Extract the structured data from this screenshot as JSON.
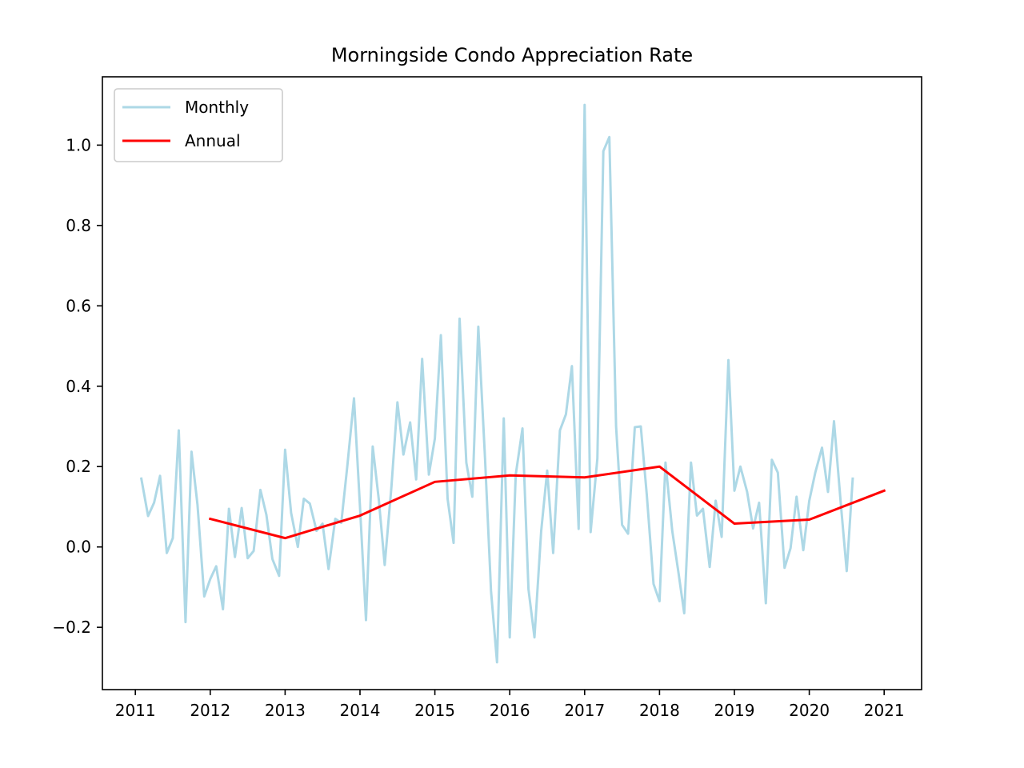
{
  "chart_data": {
    "type": "line",
    "title": "Morningside Condo Appreciation Rate",
    "xlabel": "",
    "ylabel": "",
    "xlim": [
      2010.56,
      2021.5
    ],
    "ylim": [
      -0.355,
      1.17
    ],
    "x_ticks": [
      2011,
      2012,
      2013,
      2014,
      2015,
      2016,
      2017,
      2018,
      2019,
      2020,
      2021
    ],
    "x_tick_labels": [
      "2011",
      "2012",
      "2013",
      "2014",
      "2015",
      "2016",
      "2017",
      "2018",
      "2019",
      "2020",
      "2021"
    ],
    "y_ticks": [
      -0.2,
      0.0,
      0.2,
      0.4,
      0.6,
      0.8,
      1.0
    ],
    "y_tick_labels": [
      "−0.2",
      "0.0",
      "0.2",
      "0.4",
      "0.6",
      "0.8",
      "1.0"
    ],
    "grid": false,
    "legend": {
      "placement": "top-left",
      "entries": [
        "Monthly",
        "Annual"
      ]
    },
    "series": [
      {
        "name": "Monthly",
        "color": "#add8e6",
        "x": [
          2011.08,
          2011.17,
          2011.25,
          2011.33,
          2011.42,
          2011.5,
          2011.58,
          2011.67,
          2011.75,
          2011.83,
          2011.92,
          2012.0,
          2012.08,
          2012.17,
          2012.25,
          2012.33,
          2012.42,
          2012.5,
          2012.58,
          2012.67,
          2012.75,
          2012.83,
          2012.92,
          2013.0,
          2013.08,
          2013.17,
          2013.25,
          2013.33,
          2013.42,
          2013.5,
          2013.58,
          2013.67,
          2013.75,
          2013.83,
          2013.92,
          2014.0,
          2014.08,
          2014.17,
          2014.25,
          2014.33,
          2014.42,
          2014.5,
          2014.58,
          2014.67,
          2014.75,
          2014.83,
          2014.92,
          2015.0,
          2015.08,
          2015.17,
          2015.25,
          2015.33,
          2015.42,
          2015.5,
          2015.58,
          2015.67,
          2015.75,
          2015.83,
          2015.92,
          2016.0,
          2016.08,
          2016.17,
          2016.25,
          2016.33,
          2016.42,
          2016.5,
          2016.58,
          2016.67,
          2016.75,
          2016.83,
          2016.92,
          2017.0,
          2017.08,
          2017.17,
          2017.25,
          2017.33,
          2017.42,
          2017.5,
          2017.58,
          2017.67,
          2017.75,
          2017.83,
          2017.92,
          2018.0,
          2018.08,
          2018.17,
          2018.25,
          2018.33,
          2018.42,
          2018.5,
          2018.58,
          2018.67,
          2018.75,
          2018.83,
          2018.92,
          2019.0,
          2019.08,
          2019.17,
          2019.25,
          2019.33,
          2019.42,
          2019.5,
          2019.58,
          2019.67,
          2019.75,
          2019.83,
          2019.92,
          2020.0,
          2020.08,
          2020.17,
          2020.25,
          2020.33,
          2020.42,
          2020.5,
          2020.58
        ],
        "values": [
          0.17,
          0.077,
          0.11,
          0.177,
          -0.015,
          0.022,
          0.29,
          -0.187,
          0.237,
          0.105,
          -0.123,
          -0.08,
          -0.048,
          -0.155,
          0.095,
          -0.025,
          0.097,
          -0.028,
          -0.01,
          0.142,
          0.08,
          -0.03,
          -0.072,
          0.242,
          0.085,
          0.0,
          0.12,
          0.108,
          0.04,
          0.058,
          -0.055,
          0.07,
          0.06,
          0.2,
          0.37,
          0.1,
          -0.182,
          0.25,
          0.12,
          -0.045,
          0.15,
          0.36,
          0.23,
          0.31,
          0.168,
          0.468,
          0.18,
          0.27,
          0.527,
          0.12,
          0.01,
          0.568,
          0.21,
          0.125,
          0.548,
          0.22,
          -0.11,
          -0.287,
          0.32,
          -0.225,
          0.18,
          0.295,
          -0.105,
          -0.225,
          0.04,
          0.19,
          -0.015,
          0.29,
          0.33,
          0.45,
          0.045,
          1.1,
          0.037,
          0.22,
          0.985,
          1.02,
          0.3,
          0.055,
          0.033,
          0.298,
          0.3,
          0.13,
          -0.092,
          -0.135,
          0.21,
          0.04,
          -0.06,
          -0.165,
          0.21,
          0.078,
          0.095,
          -0.05,
          0.115,
          0.025,
          0.465,
          0.14,
          0.2,
          0.137,
          0.046,
          0.11,
          -0.14,
          0.217,
          0.185,
          -0.052,
          -0.003,
          0.125,
          -0.008,
          0.115,
          0.185,
          0.247,
          0.137,
          0.313,
          0.11,
          -0.06,
          0.17
        ]
      },
      {
        "name": "Annual",
        "color": "#ff0000",
        "x": [
          2012,
          2013,
          2014,
          2015,
          2016,
          2017,
          2018,
          2019,
          2020,
          2021
        ],
        "values": [
          0.07,
          0.022,
          0.078,
          0.162,
          0.178,
          0.173,
          0.2,
          0.058,
          0.068,
          0.14
        ]
      }
    ]
  }
}
